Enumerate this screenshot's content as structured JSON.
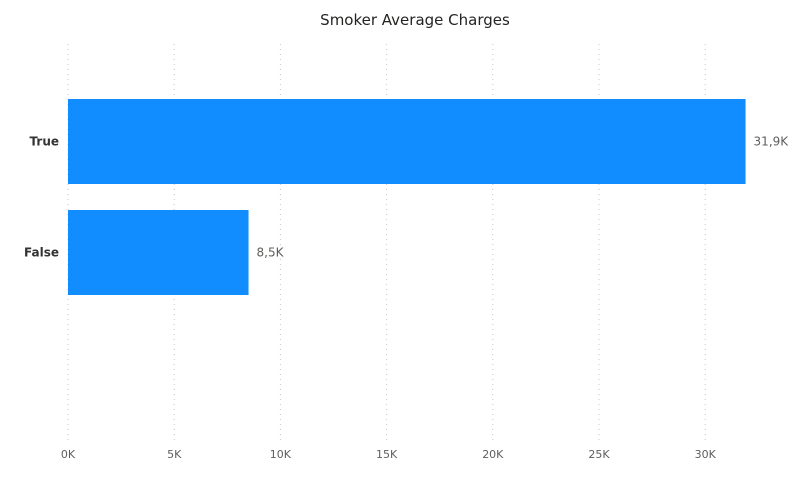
{
  "chart_data": {
    "type": "bar",
    "orientation": "horizontal",
    "title": "Smoker Average Charges",
    "xlabel": "",
    "ylabel": "",
    "categories": [
      "True",
      "False"
    ],
    "values": [
      31900,
      8500
    ],
    "data_labels": [
      "31,9K",
      "8,5K"
    ],
    "xlim": [
      0,
      32000
    ],
    "x_ticks": [
      0,
      5000,
      10000,
      15000,
      20000,
      25000,
      30000
    ],
    "x_tick_labels": [
      "0K",
      "5K",
      "10K",
      "15K",
      "20K",
      "25K",
      "30K"
    ],
    "grid": true,
    "bar_color": "#118DFF"
  }
}
